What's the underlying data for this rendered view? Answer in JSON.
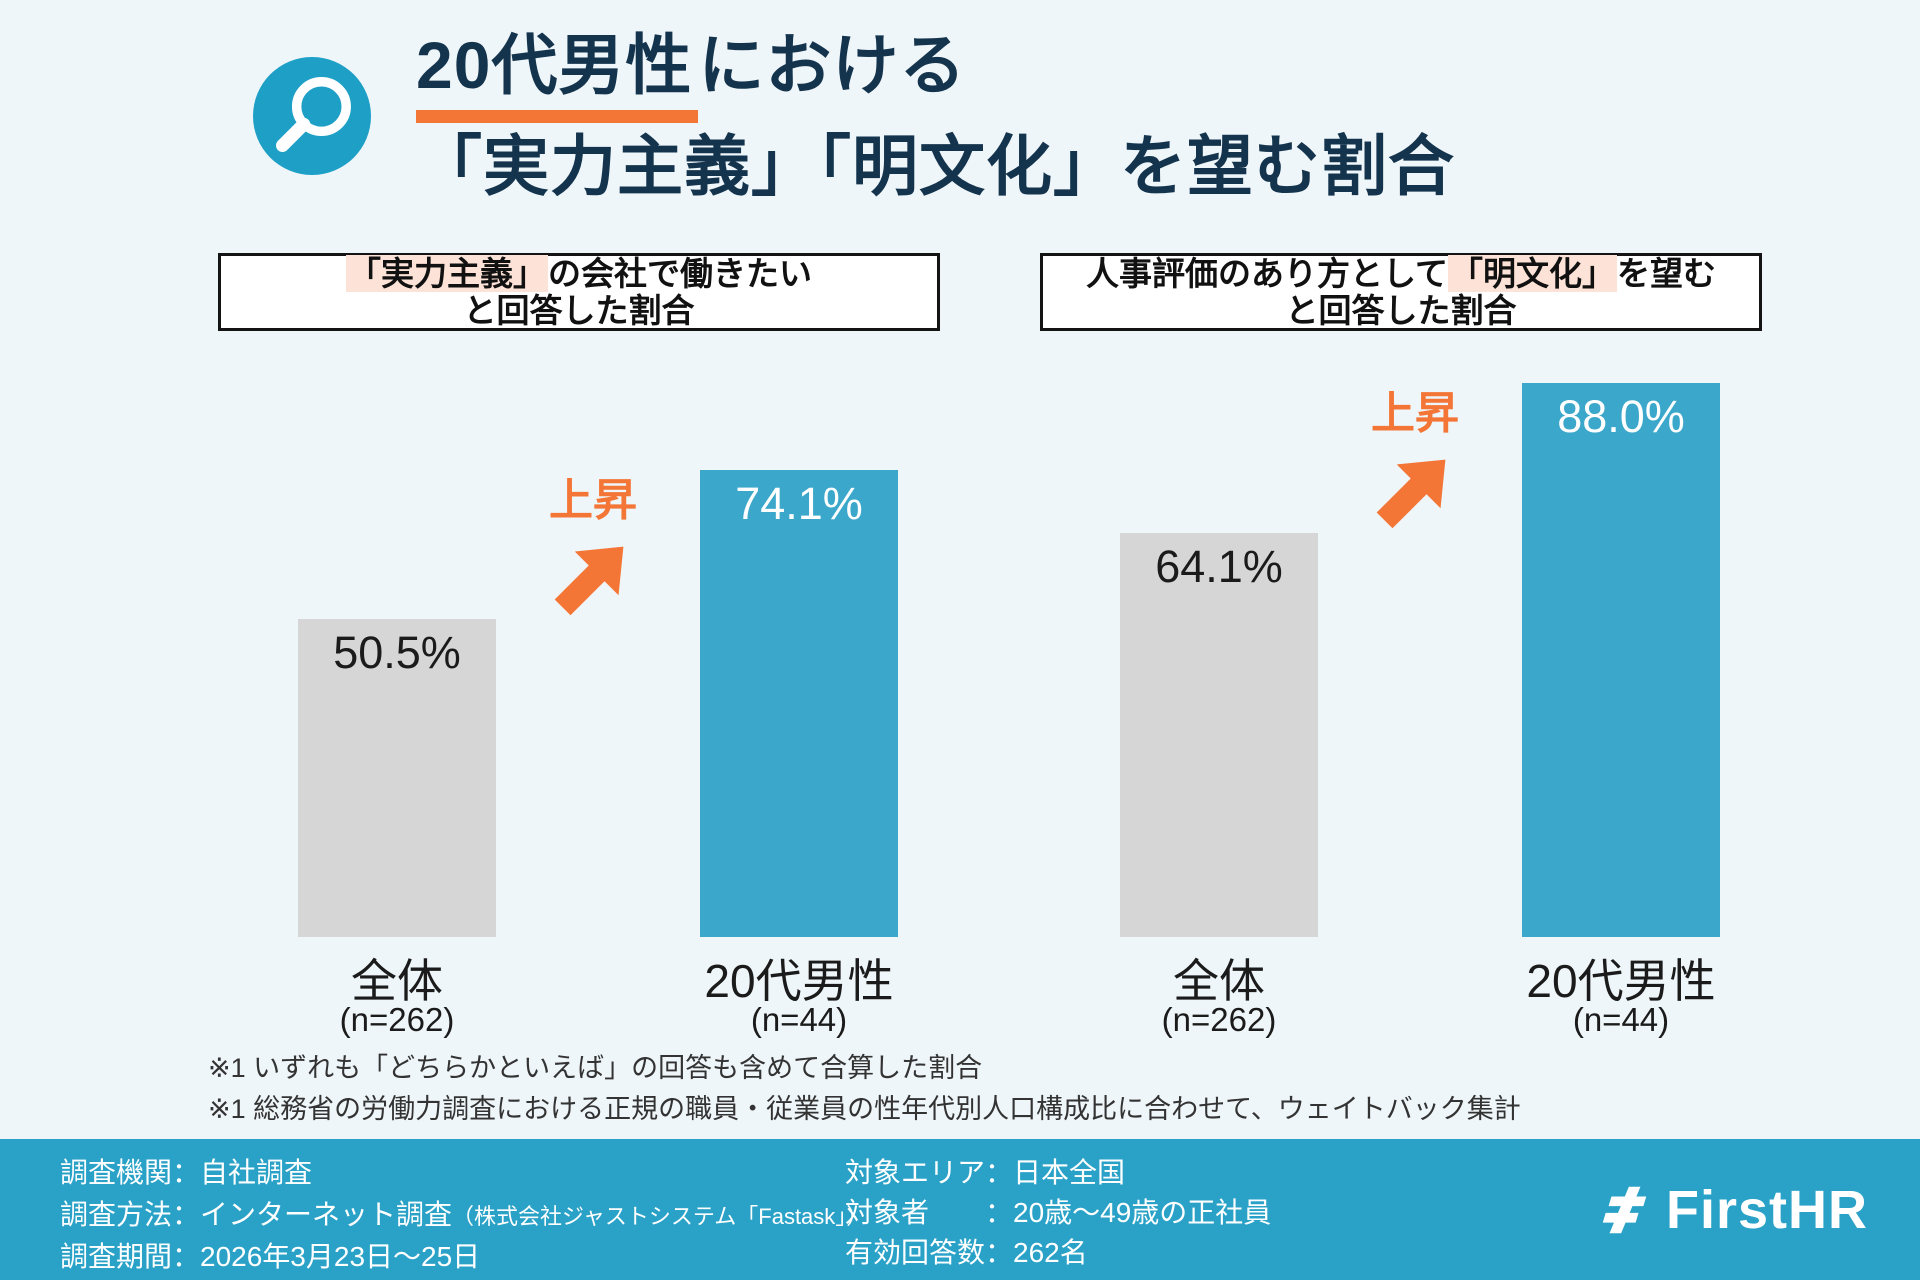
{
  "colors": {
    "background": "#eff6f9",
    "title": "#14344e",
    "accent_orange": "#f47637",
    "bar_blue": "#3ba7cb",
    "bar_gray": "#d6d6d6",
    "footer_bg": "#2aa2c8",
    "highlight_pink": "#fde3d7",
    "icon_circle": "#1d9fc6"
  },
  "header": {
    "icon": "magnifier-icon",
    "title_underlined": "20代男性",
    "title_line1_rest": "における",
    "title_line2": "「実力主義」「明文化」を望む割合"
  },
  "chart_data": [
    {
      "type": "bar",
      "title": "「実力主義」の会社で働きたいと回答した割合",
      "title_parts": {
        "pre": "",
        "highlight": "「実力主義」",
        "post": "の会社で働きたい",
        "line2": "と回答した割合"
      },
      "categories": [
        "全体",
        "20代男性"
      ],
      "n_labels": [
        "(n=262)",
        "(n=44)"
      ],
      "values": [
        50.5,
        74.1
      ],
      "value_labels": [
        "50.5%",
        "74.1%"
      ],
      "annotation": "上昇",
      "ylim": [
        0,
        100
      ],
      "bar_colors": [
        "#d6d6d6",
        "#3ba7cb"
      ],
      "legend_position": "none",
      "grid": false
    },
    {
      "type": "bar",
      "title": "人事評価のあり方として「明文化」を望むと回答した割合",
      "title_parts": {
        "pre": "人事評価のあり方として",
        "highlight": "「明文化」",
        "post": "を望む",
        "line2": "と回答した割合"
      },
      "categories": [
        "全体",
        "20代男性"
      ],
      "n_labels": [
        "(n=262)",
        "(n=44)"
      ],
      "values": [
        64.1,
        88.0
      ],
      "value_labels": [
        "64.1%",
        "88.0%"
      ],
      "annotation": "上昇",
      "ylim": [
        0,
        100
      ],
      "bar_colors": [
        "#d6d6d6",
        "#3ba7cb"
      ],
      "legend_position": "none",
      "grid": false
    }
  ],
  "footnotes": [
    "※1 いずれも「どちらかといえば」の回答も含めて合算した割合",
    "※1 総務省の労働力調査における正規の職員・従業員の性年代別人口構成比に合わせて、ウェイトバック集計"
  ],
  "footer": {
    "survey_items_left": [
      {
        "label": "調査機関：",
        "value": "自社調査",
        "note": ""
      },
      {
        "label": "調査方法：",
        "value": "インターネット調査",
        "note": "（株式会社ジャストシステム「Fastask」）"
      },
      {
        "label": "調査期間：",
        "value": "2026年3月23日〜25日",
        "note": ""
      }
    ],
    "survey_items_right": [
      {
        "label": "対象エリア：",
        "value": "日本全国"
      },
      {
        "label": "対象者　　：",
        "value": "20歳〜49歳の正社員"
      },
      {
        "label": "有効回答数：",
        "value": "262名"
      }
    ],
    "logo_text": "FirstHR"
  }
}
